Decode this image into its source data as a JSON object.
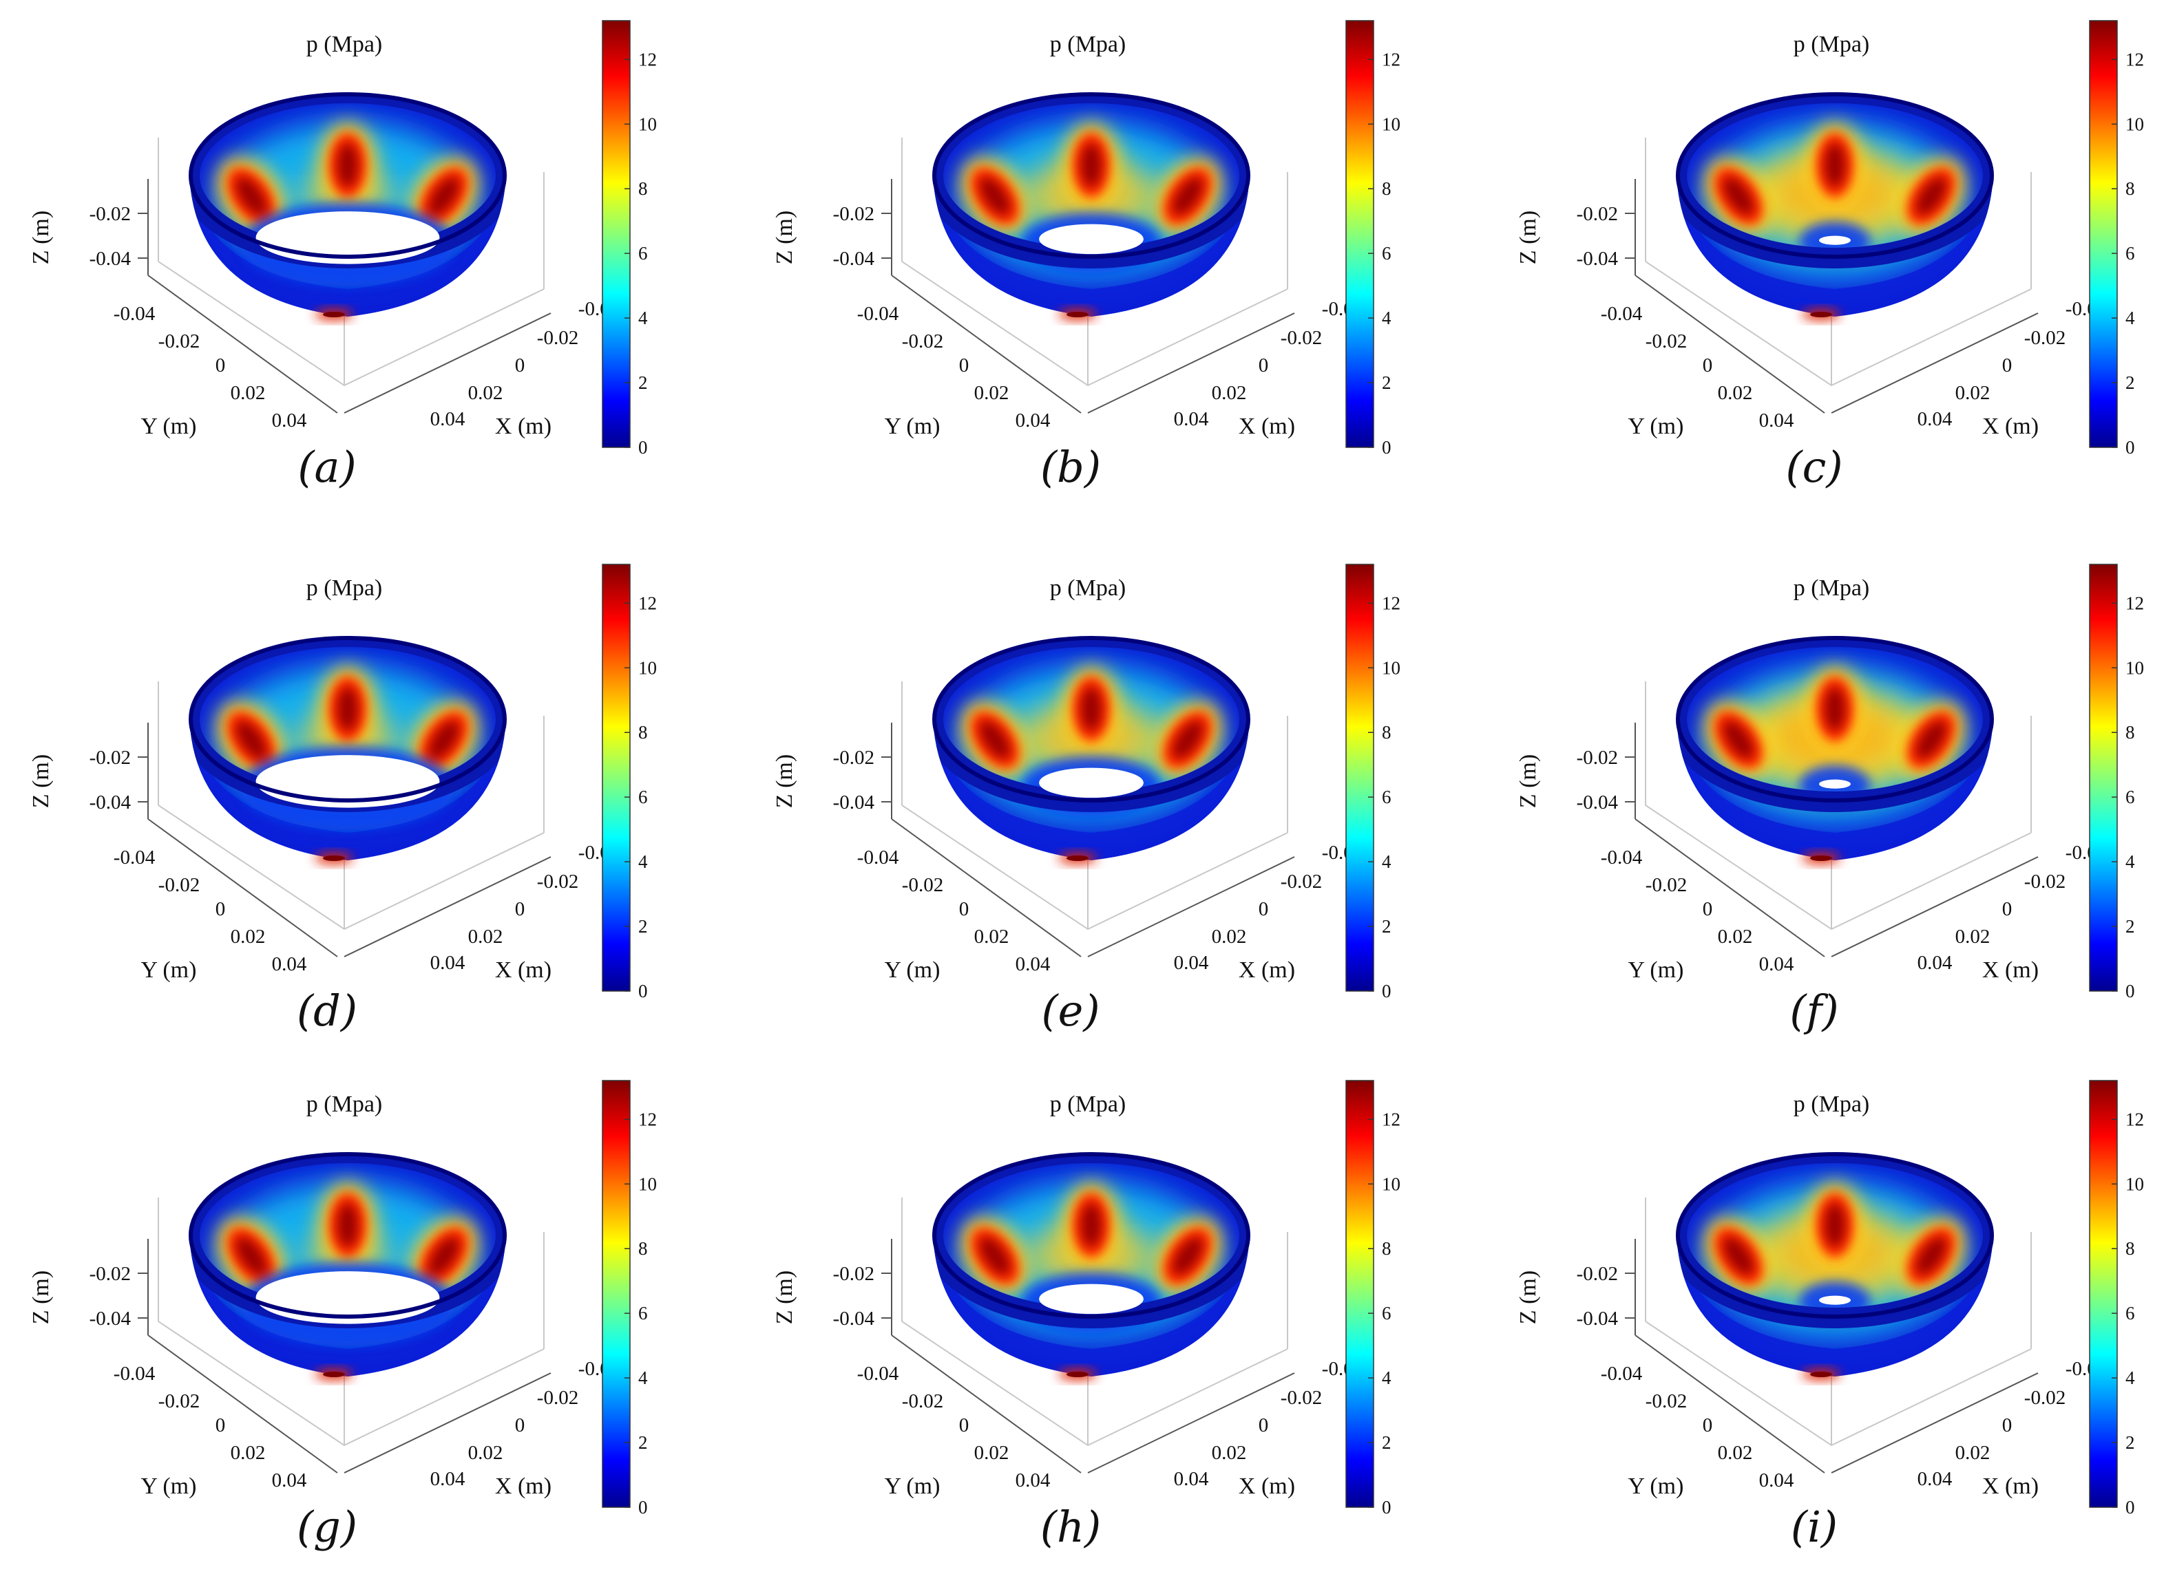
{
  "chart_data": [
    {
      "type": "heatmap",
      "id": "a",
      "caption": "(a)",
      "title": "p (Mpa)",
      "xlabel": "X (m)",
      "ylabel": "Y (m)",
      "zlabel": "Z (m)",
      "x_ticks": [
        "-0.04",
        "-0.02",
        "0",
        "0.02",
        "0.04"
      ],
      "y_ticks": [
        "-0.04",
        "-0.02",
        "0",
        "0.02",
        "0.04"
      ],
      "z_ticks": [
        "-0.02",
        "-0.04"
      ],
      "colorbar": {
        "ticks": [
          "0",
          "2",
          "4",
          "6",
          "8",
          "10",
          "12"
        ],
        "range": [
          0,
          13.2
        ],
        "colormap": "jet"
      },
      "hot_spots": 3,
      "inner_hole_ratio": 0.58,
      "spread": 0.55
    },
    {
      "type": "heatmap",
      "id": "b",
      "caption": "(b)",
      "title": "p (Mpa)",
      "xlabel": "X (m)",
      "ylabel": "Y (m)",
      "zlabel": "Z (m)",
      "x_ticks": [
        "-0.04",
        "-0.02",
        "0",
        "0.02",
        "0.04"
      ],
      "y_ticks": [
        "-0.04",
        "-0.02",
        "0",
        "0.02",
        "0.04"
      ],
      "z_ticks": [
        "-0.02",
        "-0.04"
      ],
      "colorbar": {
        "ticks": [
          "0",
          "2",
          "4",
          "6",
          "8",
          "10",
          "12"
        ],
        "range": [
          0,
          13.2
        ],
        "colormap": "jet"
      },
      "hot_spots": 3,
      "inner_hole_ratio": 0.33,
      "spread": 0.8
    },
    {
      "type": "heatmap",
      "id": "c",
      "caption": "(c)",
      "title": "p (Mpa)",
      "xlabel": "X (m)",
      "ylabel": "Y (m)",
      "zlabel": "Z (m)",
      "x_ticks": [
        "-0.04",
        "-0.02",
        "0",
        "0.02",
        "0.04"
      ],
      "y_ticks": [
        "-0.04",
        "-0.02",
        "0",
        "0.02",
        "0.04"
      ],
      "z_ticks": [
        "-0.02",
        "-0.04"
      ],
      "colorbar": {
        "ticks": [
          "0",
          "2",
          "4",
          "6",
          "8",
          "10",
          "12"
        ],
        "range": [
          0,
          13.2
        ],
        "colormap": "jet"
      },
      "hot_spots": 3,
      "inner_hole_ratio": 0.1,
      "spread": 1.05
    },
    {
      "type": "heatmap",
      "id": "d",
      "caption": "(d)",
      "title": "p (Mpa)",
      "xlabel": "X (m)",
      "ylabel": "Y (m)",
      "zlabel": "Z (m)",
      "x_ticks": [
        "-0.04",
        "-0.02",
        "0",
        "0.02",
        "0.04"
      ],
      "y_ticks": [
        "-0.04",
        "-0.02",
        "0",
        "0.02",
        "0.04"
      ],
      "z_ticks": [
        "-0.02",
        "-0.04"
      ],
      "colorbar": {
        "ticks": [
          "0",
          "2",
          "4",
          "6",
          "8",
          "10",
          "12"
        ],
        "range": [
          0,
          13.2
        ],
        "colormap": "jet"
      },
      "hot_spots": 3,
      "inner_hole_ratio": 0.58,
      "spread": 0.6
    },
    {
      "type": "heatmap",
      "id": "e",
      "caption": "(e)",
      "title": "p (Mpa)",
      "xlabel": "X (m)",
      "ylabel": "Y (m)",
      "zlabel": "Z (m)",
      "x_ticks": [
        "-0.04",
        "-0.02",
        "0",
        "0.02",
        "0.04"
      ],
      "y_ticks": [
        "-0.04",
        "-0.02",
        "0",
        "0.02",
        "0.04"
      ],
      "z_ticks": [
        "-0.02",
        "-0.04"
      ],
      "colorbar": {
        "ticks": [
          "0",
          "2",
          "4",
          "6",
          "8",
          "10",
          "12"
        ],
        "range": [
          0,
          13.2
        ],
        "colormap": "jet"
      },
      "hot_spots": 3,
      "inner_hole_ratio": 0.33,
      "spread": 0.85
    },
    {
      "type": "heatmap",
      "id": "f",
      "caption": "(f)",
      "title": "p (Mpa)",
      "xlabel": "X (m)",
      "ylabel": "Y (m)",
      "zlabel": "Z (m)",
      "x_ticks": [
        "-0.04",
        "-0.02",
        "0",
        "0.02",
        "0.04"
      ],
      "y_ticks": [
        "-0.04",
        "-0.02",
        "0",
        "0.02",
        "0.04"
      ],
      "z_ticks": [
        "-0.02",
        "-0.04"
      ],
      "colorbar": {
        "ticks": [
          "0",
          "2",
          "4",
          "6",
          "8",
          "10",
          "12"
        ],
        "range": [
          0,
          13.2
        ],
        "colormap": "jet"
      },
      "hot_spots": 3,
      "inner_hole_ratio": 0.1,
      "spread": 1.1
    },
    {
      "type": "heatmap",
      "id": "g",
      "caption": "(g)",
      "title": "p (Mpa)",
      "xlabel": "X (m)",
      "ylabel": "Y (m)",
      "zlabel": "Z (m)",
      "x_ticks": [
        "-0.04",
        "-0.02",
        "0",
        "0.02",
        "0.04"
      ],
      "y_ticks": [
        "-0.04",
        "-0.02",
        "0",
        "0.02",
        "0.04"
      ],
      "z_ticks": [
        "-0.02",
        "-0.04"
      ],
      "colorbar": {
        "ticks": [
          "0",
          "2",
          "4",
          "6",
          "8",
          "10",
          "12"
        ],
        "range": [
          0,
          13.2
        ],
        "colormap": "jet"
      },
      "hot_spots": 3,
      "inner_hole_ratio": 0.58,
      "spread": 0.5
    },
    {
      "type": "heatmap",
      "id": "h",
      "caption": "(h)",
      "title": "p (Mpa)",
      "xlabel": "X (m)",
      "ylabel": "Y (m)",
      "zlabel": "Z (m)",
      "x_ticks": [
        "-0.04",
        "-0.02",
        "0",
        "0.02",
        "0.04"
      ],
      "y_ticks": [
        "-0.04",
        "-0.02",
        "0",
        "0.02",
        "0.04"
      ],
      "z_ticks": [
        "-0.02",
        "-0.04"
      ],
      "colorbar": {
        "ticks": [
          "0",
          "2",
          "4",
          "6",
          "8",
          "10",
          "12"
        ],
        "range": [
          0,
          13.2
        ],
        "colormap": "jet"
      },
      "hot_spots": 3,
      "inner_hole_ratio": 0.33,
      "spread": 0.75
    },
    {
      "type": "heatmap",
      "id": "i",
      "caption": "(i)",
      "title": "p (Mpa)",
      "xlabel": "X (m)",
      "ylabel": "Y (m)",
      "zlabel": "Z (m)",
      "x_ticks": [
        "-0.04",
        "-0.02",
        "0",
        "0.02",
        "0.04"
      ],
      "y_ticks": [
        "-0.04",
        "-0.02",
        "0",
        "0.02",
        "0.04"
      ],
      "z_ticks": [
        "-0.02",
        "-0.04"
      ],
      "colorbar": {
        "ticks": [
          "0",
          "2",
          "4",
          "6",
          "8",
          "10",
          "12"
        ],
        "range": [
          0,
          13.2
        ],
        "colormap": "jet"
      },
      "hot_spots": 3,
      "inner_hole_ratio": 0.1,
      "spread": 1.0
    }
  ]
}
